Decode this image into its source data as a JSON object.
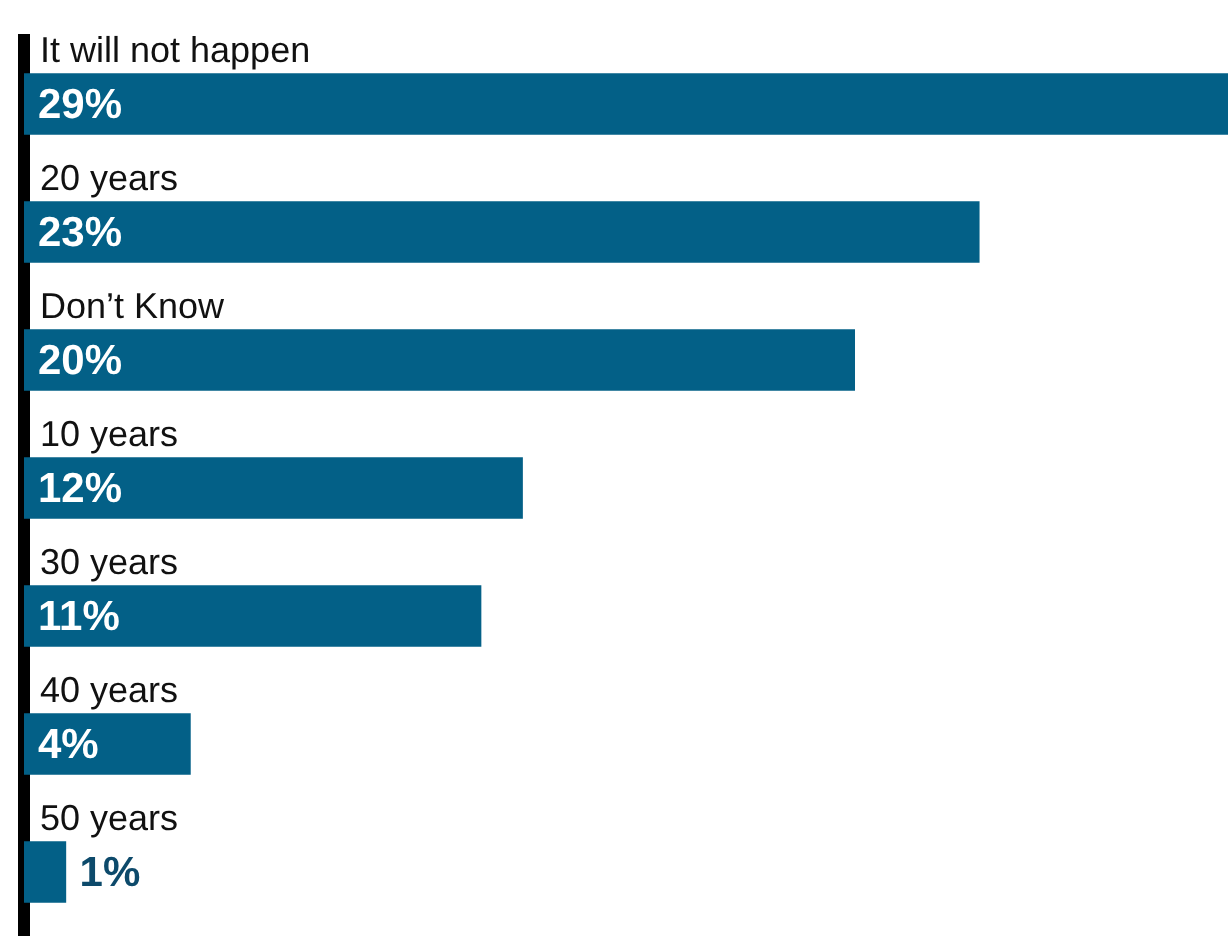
{
  "chart_data": {
    "type": "bar",
    "orientation": "horizontal",
    "categories": [
      "It will not happen",
      "20 years",
      "Don’t Know",
      "10 years",
      "30 years",
      "40 years",
      "50 years"
    ],
    "values": [
      29,
      23,
      20,
      12,
      11,
      4,
      1
    ],
    "value_labels": [
      "29%",
      "23%",
      "20%",
      "12%",
      "11%",
      "4%",
      "1%"
    ],
    "color": "#036087",
    "grid": false,
    "legend": false
  }
}
